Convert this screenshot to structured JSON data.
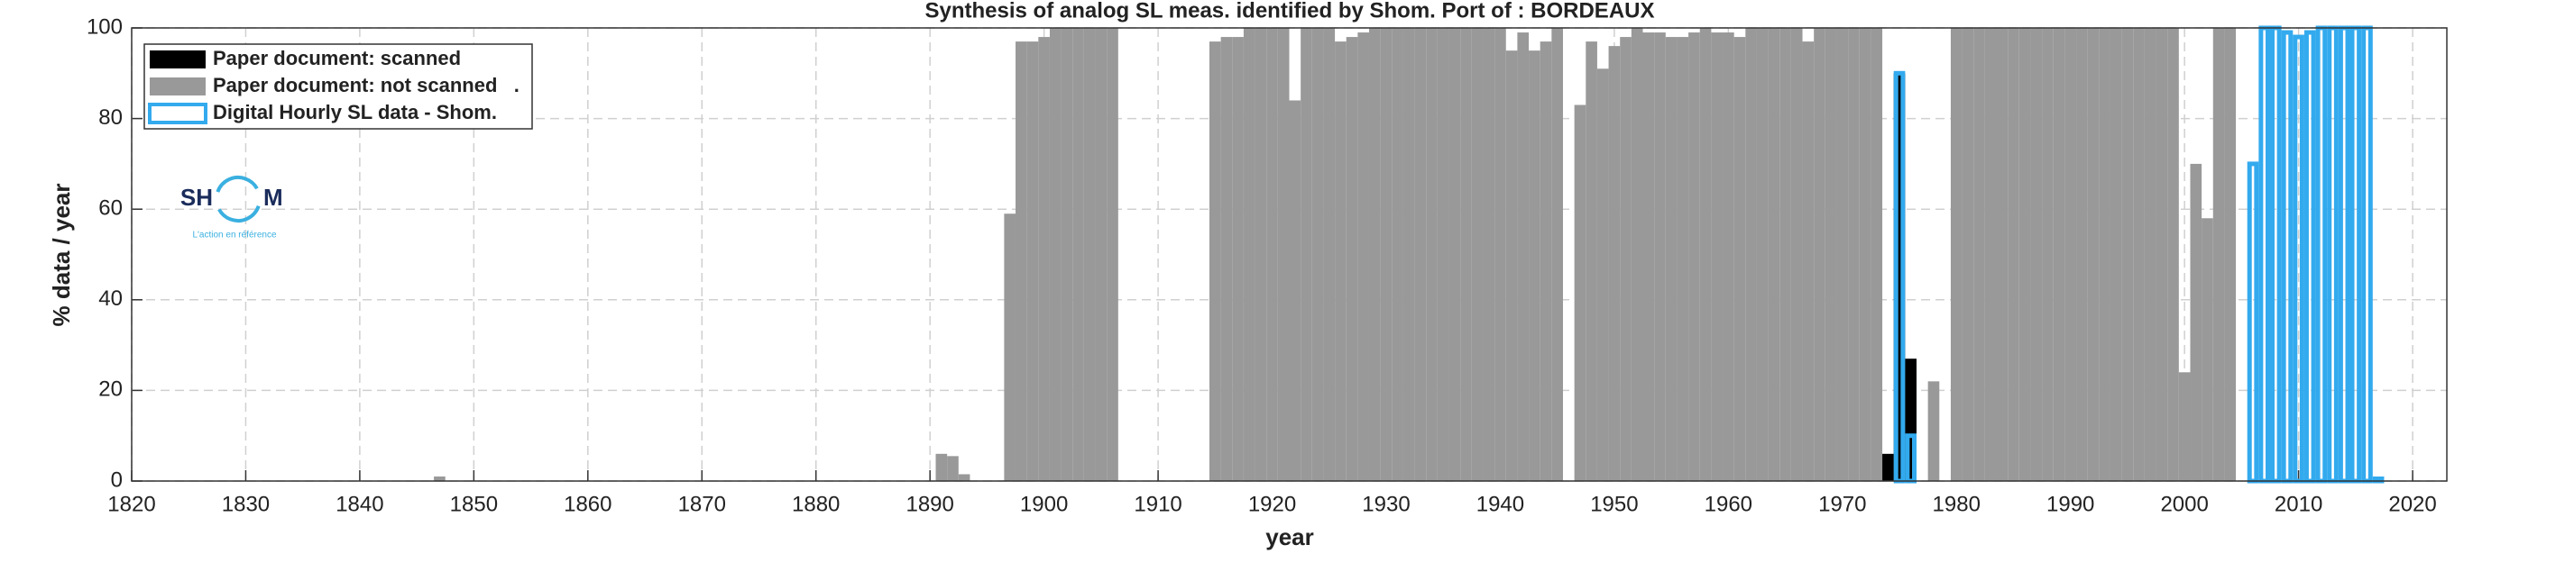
{
  "chart_data": {
    "type": "bar",
    "title": "Synthesis of analog SL meas. identified by Shom. Port of : BORDEAUX",
    "x_label": "year",
    "y_label": "% data / year",
    "xlim": [
      1820,
      2023
    ],
    "ylim": [
      0,
      100
    ],
    "xticks": [
      1820,
      1830,
      1840,
      1850,
      1860,
      1870,
      1880,
      1890,
      1900,
      1910,
      1920,
      1930,
      1940,
      1950,
      1960,
      1970,
      1980,
      1990,
      2000,
      2010,
      2020
    ],
    "yticks": [
      0,
      20,
      40,
      60,
      80,
      100
    ],
    "grid": true,
    "legend_position": "upper left",
    "logo": {
      "left": "SH",
      "right": "M",
      "tagline": "L'action en référence"
    },
    "series": [
      {
        "name": "Paper document: not scanned   .",
        "color": "#999999",
        "filled": true,
        "x": [
          1847,
          1891,
          1892,
          1893,
          1897,
          1898,
          1899,
          1900,
          1901,
          1902,
          1903,
          1904,
          1905,
          1906,
          1915,
          1916,
          1917,
          1918,
          1919,
          1920,
          1921,
          1922,
          1923,
          1924,
          1925,
          1926,
          1927,
          1928,
          1929,
          1930,
          1931,
          1932,
          1933,
          1934,
          1935,
          1936,
          1937,
          1938,
          1939,
          1940,
          1941,
          1942,
          1943,
          1944,
          1945,
          1947,
          1948,
          1949,
          1950,
          1951,
          1952,
          1953,
          1954,
          1955,
          1956,
          1957,
          1958,
          1959,
          1960,
          1961,
          1962,
          1963,
          1964,
          1965,
          1966,
          1967,
          1968,
          1969,
          1970,
          1971,
          1972,
          1973,
          1978,
          1980,
          1981,
          1982,
          1983,
          1984,
          1985,
          1986,
          1987,
          1988,
          1989,
          1990,
          1991,
          1992,
          1993,
          1994,
          1995,
          1996,
          1997,
          1998,
          1999,
          2000,
          2001,
          2002,
          2003,
          2004
        ],
        "values": [
          1,
          6,
          5.5,
          1.5,
          59,
          97,
          97,
          98,
          100,
          100,
          100,
          100,
          100,
          100,
          97,
          98,
          98,
          100,
          100,
          100,
          100,
          84,
          100,
          100,
          100,
          97,
          98,
          99,
          100,
          100,
          100,
          100,
          100,
          100,
          100,
          100,
          100,
          100,
          100,
          100,
          95,
          99,
          95,
          97,
          100,
          83,
          97,
          91,
          96,
          98,
          100,
          99,
          99,
          98,
          98,
          99,
          100,
          99,
          99,
          98,
          100,
          100,
          100,
          100,
          100,
          97,
          100,
          100,
          100,
          100,
          100,
          100,
          22,
          100,
          100,
          100,
          100,
          100,
          100,
          100,
          100,
          100,
          100,
          100,
          100,
          100,
          100,
          100,
          100,
          100,
          100,
          100,
          100,
          24,
          70,
          58,
          100,
          100
        ]
      },
      {
        "name": "Paper document: scanned",
        "color": "#000000",
        "filled": true,
        "x": [
          1974,
          1975,
          1976
        ],
        "values": [
          6,
          90,
          27
        ]
      },
      {
        "name": "Digital Hourly SL data - Shom.",
        "color": "#33aaee",
        "filled": false,
        "x": [
          1975,
          1976,
          2006,
          2007,
          2008,
          2009,
          2010,
          2011,
          2012,
          2013,
          2014,
          2015,
          2016,
          2017
        ],
        "values": [
          90,
          10,
          70,
          100,
          100,
          99,
          98,
          99,
          100,
          100,
          100,
          100,
          100,
          0.5
        ]
      }
    ],
    "legend_order": [
      1,
      0,
      2
    ]
  }
}
